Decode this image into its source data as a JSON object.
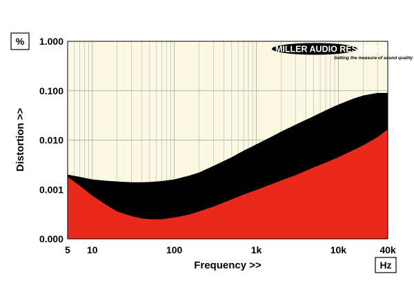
{
  "chart_data": {
    "type": "area",
    "title": "",
    "xlabel": "Frequency >>",
    "ylabel": "Distortion >>",
    "x_unit": "Hz",
    "y_unit": "%",
    "x_scale": "log",
    "y_scale": "log",
    "xlim": [
      5,
      40000
    ],
    "ylim": [
      0.0,
      1.0
    ],
    "x_ticks": [
      {
        "value": 5,
        "label": "5"
      },
      {
        "value": 10,
        "label": "10"
      },
      {
        "value": 100,
        "label": "100"
      },
      {
        "value": 1000,
        "label": "1k"
      },
      {
        "value": 10000,
        "label": "10k"
      },
      {
        "value": 40000,
        "label": "40k"
      }
    ],
    "y_ticks": [
      {
        "value": 0.0001,
        "label": "0.000"
      },
      {
        "value": 0.001,
        "label": "0.001"
      },
      {
        "value": 0.01,
        "label": "0.010"
      },
      {
        "value": 0.1,
        "label": "0.100"
      },
      {
        "value": 1,
        "label": "1.000"
      }
    ],
    "grid": true,
    "background_color": "#fbf8e4",
    "series": [
      {
        "color": "#e8291c",
        "x": [
          5,
          7,
          10,
          15,
          20,
          30,
          40,
          50,
          70,
          100,
          150,
          200,
          300,
          500,
          700,
          1000,
          1500,
          2000,
          3000,
          5000,
          7000,
          10000,
          15000,
          20000,
          30000,
          40000
        ],
        "y": [
          0.0018,
          0.0012,
          0.00075,
          0.00048,
          0.00036,
          0.00029,
          0.00026,
          0.00025,
          0.00025,
          0.00027,
          0.00031,
          0.00036,
          0.00045,
          0.00063,
          0.00079,
          0.00098,
          0.00126,
          0.00152,
          0.00195,
          0.0028,
          0.0035,
          0.0045,
          0.0062,
          0.0078,
          0.0115,
          0.0165
        ]
      },
      {
        "color": "#000000",
        "x": [
          5,
          7,
          10,
          15,
          20,
          30,
          40,
          50,
          70,
          100,
          150,
          200,
          300,
          500,
          700,
          1000,
          1500,
          2000,
          3000,
          5000,
          7000,
          10000,
          15000,
          20000,
          30000,
          40000
        ],
        "y": [
          0.002,
          0.0018,
          0.0016,
          0.0015,
          0.00145,
          0.0014,
          0.0014,
          0.00142,
          0.00148,
          0.0016,
          0.0019,
          0.0022,
          0.003,
          0.0045,
          0.0061,
          0.0082,
          0.0115,
          0.0148,
          0.0205,
          0.0305,
          0.04,
          0.0525,
          0.0685,
          0.08,
          0.09,
          0.09
        ]
      }
    ]
  },
  "logo": {
    "text": "MILLER AUDIO RESEARCH",
    "tagline": "Setting the measure of sound quality"
  }
}
